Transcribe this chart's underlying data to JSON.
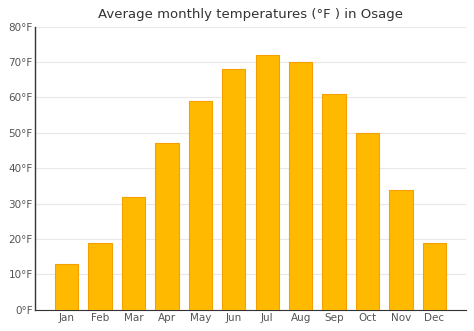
{
  "title": "Average monthly temperatures (°F ) in Osage",
  "months": [
    "Jan",
    "Feb",
    "Mar",
    "Apr",
    "May",
    "Jun",
    "Jul",
    "Aug",
    "Sep",
    "Oct",
    "Nov",
    "Dec"
  ],
  "values": [
    13,
    19,
    32,
    47,
    59,
    68,
    72,
    70,
    61,
    50,
    34,
    19
  ],
  "bar_color": "#FFBA00",
  "bar_edge_color": "#F5A000",
  "background_color": "#ffffff",
  "plot_bg_color": "#ffffff",
  "grid_color": "#e8e8e8",
  "ylim": [
    0,
    80
  ],
  "yticks": [
    0,
    10,
    20,
    30,
    40,
    50,
    60,
    70,
    80
  ],
  "ytick_labels": [
    "0°F",
    "10°F",
    "20°F",
    "30°F",
    "40°F",
    "50°F",
    "60°F",
    "70°F",
    "80°F"
  ],
  "title_fontsize": 9.5,
  "tick_fontsize": 7.5,
  "bar_width": 0.7,
  "spine_color": "#333333",
  "tick_color": "#555555"
}
